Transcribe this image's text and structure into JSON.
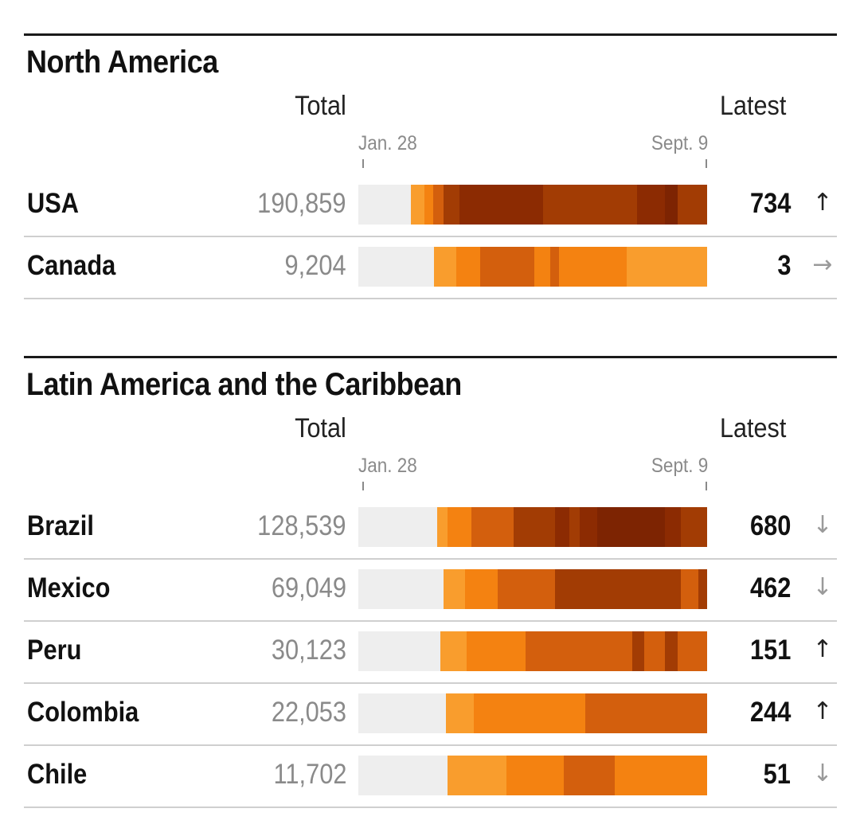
{
  "chart_data": [
    {
      "type": "bar",
      "title": "North America",
      "total_label": "Total",
      "latest_label": "Latest",
      "x_start": "Jan. 28",
      "x_end": "Sept. 9",
      "rows": [
        {
          "country": "USA",
          "total": "190,859",
          "latest": "734",
          "trend": "up",
          "segments": [
            {
              "start": 0.15,
              "end": 0.19,
              "color": "#f99d2d"
            },
            {
              "start": 0.19,
              "end": 0.215,
              "color": "#f48211"
            },
            {
              "start": 0.215,
              "end": 0.245,
              "color": "#d35f0d"
            },
            {
              "start": 0.245,
              "end": 0.29,
              "color": "#a23c04"
            },
            {
              "start": 0.29,
              "end": 0.53,
              "color": "#8c2b02"
            },
            {
              "start": 0.53,
              "end": 0.8,
              "color": "#a23c04"
            },
            {
              "start": 0.8,
              "end": 0.88,
              "color": "#8c2b02"
            },
            {
              "start": 0.88,
              "end": 0.915,
              "color": "#7d2402"
            },
            {
              "start": 0.915,
              "end": 1.0,
              "color": "#a23c04"
            }
          ]
        },
        {
          "country": "Canada",
          "total": "9,204",
          "latest": "3",
          "trend": "flat",
          "segments": [
            {
              "start": 0.218,
              "end": 0.28,
              "color": "#f99d2d"
            },
            {
              "start": 0.28,
              "end": 0.35,
              "color": "#f48211"
            },
            {
              "start": 0.35,
              "end": 0.505,
              "color": "#d35f0d"
            },
            {
              "start": 0.505,
              "end": 0.55,
              "color": "#f48211"
            },
            {
              "start": 0.55,
              "end": 0.575,
              "color": "#d35f0d"
            },
            {
              "start": 0.575,
              "end": 0.77,
              "color": "#f48211"
            },
            {
              "start": 0.77,
              "end": 1.0,
              "color": "#f99d2d"
            }
          ]
        }
      ]
    },
    {
      "type": "bar",
      "title": "Latin America and the Caribbean",
      "total_label": "Total",
      "latest_label": "Latest",
      "x_start": "Jan. 28",
      "x_end": "Sept. 9",
      "rows": [
        {
          "country": "Brazil",
          "total": "128,539",
          "latest": "680",
          "trend": "down",
          "segments": [
            {
              "start": 0.225,
              "end": 0.255,
              "color": "#f99d2d"
            },
            {
              "start": 0.255,
              "end": 0.325,
              "color": "#f48211"
            },
            {
              "start": 0.325,
              "end": 0.445,
              "color": "#d35f0d"
            },
            {
              "start": 0.445,
              "end": 0.565,
              "color": "#a23c04"
            },
            {
              "start": 0.565,
              "end": 0.605,
              "color": "#8c2b02"
            },
            {
              "start": 0.605,
              "end": 0.635,
              "color": "#a23c04"
            },
            {
              "start": 0.635,
              "end": 0.685,
              "color": "#8c2b02"
            },
            {
              "start": 0.685,
              "end": 0.88,
              "color": "#7d2402"
            },
            {
              "start": 0.88,
              "end": 0.925,
              "color": "#8c2b02"
            },
            {
              "start": 0.925,
              "end": 1.0,
              "color": "#a23c04"
            }
          ]
        },
        {
          "country": "Mexico",
          "total": "69,049",
          "latest": "462",
          "trend": "down",
          "segments": [
            {
              "start": 0.245,
              "end": 0.305,
              "color": "#f99d2d"
            },
            {
              "start": 0.305,
              "end": 0.4,
              "color": "#f48211"
            },
            {
              "start": 0.4,
              "end": 0.565,
              "color": "#d35f0d"
            },
            {
              "start": 0.565,
              "end": 0.615,
              "color": "#a23c04"
            },
            {
              "start": 0.615,
              "end": 0.925,
              "color": "#a23c04"
            },
            {
              "start": 0.925,
              "end": 0.975,
              "color": "#d35f0d"
            },
            {
              "start": 0.975,
              "end": 1.0,
              "color": "#a23c04"
            }
          ]
        },
        {
          "country": "Peru",
          "total": "30,123",
          "latest": "151",
          "trend": "up",
          "segments": [
            {
              "start": 0.235,
              "end": 0.31,
              "color": "#f99d2d"
            },
            {
              "start": 0.31,
              "end": 0.48,
              "color": "#f48211"
            },
            {
              "start": 0.48,
              "end": 0.785,
              "color": "#d35f0d"
            },
            {
              "start": 0.785,
              "end": 0.82,
              "color": "#a23c04"
            },
            {
              "start": 0.82,
              "end": 0.88,
              "color": "#d35f0d"
            },
            {
              "start": 0.88,
              "end": 0.915,
              "color": "#a23c04"
            },
            {
              "start": 0.915,
              "end": 1.0,
              "color": "#d35f0d"
            }
          ]
        },
        {
          "country": "Colombia",
          "total": "22,053",
          "latest": "244",
          "trend": "up",
          "segments": [
            {
              "start": 0.25,
              "end": 0.33,
              "color": "#f99d2d"
            },
            {
              "start": 0.33,
              "end": 0.4,
              "color": "#f48211"
            },
            {
              "start": 0.4,
              "end": 0.65,
              "color": "#f48211"
            },
            {
              "start": 0.65,
              "end": 1.0,
              "color": "#d35f0d"
            }
          ]
        },
        {
          "country": "Chile",
          "total": "11,702",
          "latest": "51",
          "trend": "down",
          "segments": [
            {
              "start": 0.255,
              "end": 0.425,
              "color": "#f99d2d"
            },
            {
              "start": 0.425,
              "end": 0.47,
              "color": "#f48211"
            },
            {
              "start": 0.47,
              "end": 0.59,
              "color": "#f48211"
            },
            {
              "start": 0.59,
              "end": 0.735,
              "color": "#d35f0d"
            },
            {
              "start": 0.735,
              "end": 0.785,
              "color": "#f48211"
            },
            {
              "start": 0.785,
              "end": 1.0,
              "color": "#f48211"
            }
          ]
        }
      ]
    }
  ],
  "icons": {
    "up": "↑",
    "down": "↓",
    "flat": "→"
  }
}
